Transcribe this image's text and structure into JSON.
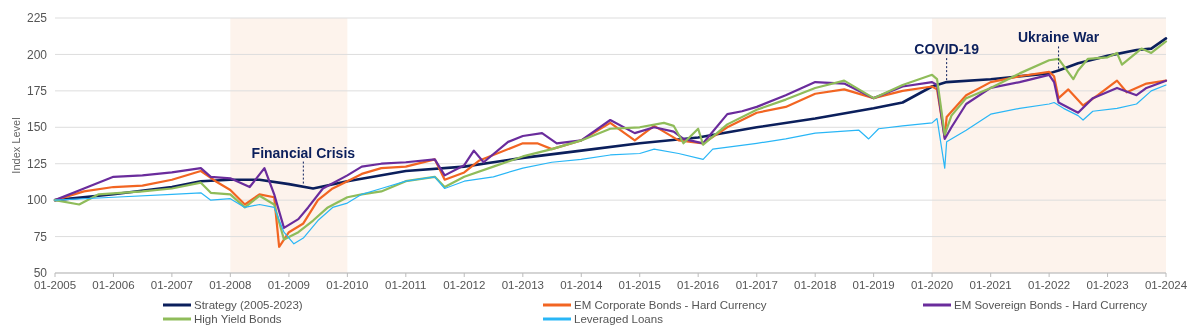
{
  "chart_data": {
    "type": "line",
    "ylabel": "Index Level",
    "xlim": [
      "2005-01",
      "2024-01"
    ],
    "ylim": [
      50,
      225
    ],
    "yticks": [
      50,
      75,
      100,
      125,
      150,
      175,
      200,
      225
    ],
    "xticks": [
      {
        "value": "2005-01",
        "label": "01-2005"
      },
      {
        "value": "2006-01",
        "label": "01-2006"
      },
      {
        "value": "2007-01",
        "label": "01-2007"
      },
      {
        "value": "2008-01",
        "label": "01-2008"
      },
      {
        "value": "2009-01",
        "label": "01-2009"
      },
      {
        "value": "2010-01",
        "label": "01-2010"
      },
      {
        "value": "2011-01",
        "label": "01-2011"
      },
      {
        "value": "2012-01",
        "label": "01-2012"
      },
      {
        "value": "2013-01",
        "label": "01-2013"
      },
      {
        "value": "2014-01",
        "label": "01-2014"
      },
      {
        "value": "2015-01",
        "label": "01-2015"
      },
      {
        "value": "2016-01",
        "label": "01-2016"
      },
      {
        "value": "2017-01",
        "label": "01-2017"
      },
      {
        "value": "2018-01",
        "label": "01-2018"
      },
      {
        "value": "2019-01",
        "label": "01-2019"
      },
      {
        "value": "2020-01",
        "label": "01-2020"
      },
      {
        "value": "2021-01",
        "label": "01-2021"
      },
      {
        "value": "2022-01",
        "label": "01-2022"
      },
      {
        "value": "2023-01",
        "label": "01-2023"
      },
      {
        "value": "2024-01",
        "label": "01-2024"
      }
    ],
    "grid": "y",
    "legend": "bottom",
    "line_style": "solid",
    "marker": "none",
    "bands": [
      {
        "axis": "x",
        "from": "2008-01",
        "to": "2010-01",
        "color": "#fdf3ec"
      },
      {
        "axis": "x",
        "from": "2020-01",
        "to": "2024-01",
        "color": "#fdf3ec"
      }
    ],
    "annotations": [
      {
        "text": "Financial Crisis",
        "x": "2009-04",
        "y": 110
      },
      {
        "text": "COVID-19",
        "x": "2020-04",
        "y": 181
      },
      {
        "text": "Ukraine War",
        "x": "2022-03",
        "y": 189
      }
    ],
    "series": [
      {
        "name": "Strategy (2005-2023)",
        "color": "#0b1f5c",
        "x": [
          "2005-01",
          "2006-01",
          "2007-01",
          "2007-07",
          "2008-01",
          "2008-07",
          "2009-01",
          "2009-06",
          "2010-01",
          "2011-01",
          "2012-01",
          "2013-01",
          "2014-01",
          "2015-01",
          "2016-01",
          "2017-01",
          "2018-01",
          "2019-01",
          "2019-07",
          "2020-01",
          "2020-04",
          "2021-01",
          "2022-01",
          "2022-03",
          "2022-07",
          "2023-01",
          "2023-07",
          "2023-10",
          "2024-01"
        ],
        "values": [
          100,
          104,
          109,
          113,
          114,
          114,
          111,
          108,
          113,
          120,
          123,
          129,
          134,
          139,
          143,
          150,
          156,
          163,
          167,
          178,
          181,
          183,
          187,
          189,
          194,
          199,
          203,
          204,
          211
        ]
      },
      {
        "name": "EM Corporate Bonds - Hard Currency",
        "color": "#f26522",
        "x": [
          "2005-01",
          "2005-07",
          "2006-01",
          "2006-07",
          "2007-01",
          "2007-07",
          "2007-10",
          "2008-01",
          "2008-04",
          "2008-07",
          "2008-10",
          "2008-11",
          "2009-01",
          "2009-04",
          "2009-07",
          "2009-10",
          "2010-01",
          "2010-04",
          "2010-08",
          "2011-01",
          "2011-07",
          "2011-09",
          "2012-01",
          "2012-04",
          "2013-01",
          "2013-04",
          "2013-07",
          "2014-01",
          "2014-07",
          "2014-12",
          "2015-04",
          "2015-09",
          "2016-02",
          "2016-07",
          "2017-01",
          "2017-07",
          "2018-01",
          "2018-07",
          "2019-01",
          "2019-07",
          "2020-01",
          "2020-02",
          "2020-03-20",
          "2020-04",
          "2020-08",
          "2021-01",
          "2021-07",
          "2022-01",
          "2022-02",
          "2022-03",
          "2022-05",
          "2022-08",
          "2022-11",
          "2023-03",
          "2023-05",
          "2023-09",
          "2024-01"
        ],
        "values": [
          100,
          106,
          109,
          110,
          114,
          120,
          113,
          107,
          97,
          104,
          102,
          68,
          78,
          84,
          100,
          108,
          113,
          118,
          122,
          123,
          128,
          114,
          119,
          127,
          139,
          139,
          135,
          141,
          153,
          141,
          151,
          141,
          139,
          150,
          160,
          164,
          173,
          176,
          170,
          175,
          178,
          176,
          143,
          157,
          172,
          181,
          185,
          188,
          185,
          170,
          176,
          165,
          172,
          182,
          174,
          180,
          182
        ]
      },
      {
        "name": "EM Sovereign Bonds - Hard Currency",
        "color": "#6a2c9c",
        "x": [
          "2005-01",
          "2005-07",
          "2006-01",
          "2006-07",
          "2007-01",
          "2007-07",
          "2007-09",
          "2008-01",
          "2008-05",
          "2008-08",
          "2008-10",
          "2008-12",
          "2009-03",
          "2009-05",
          "2009-08",
          "2010-01",
          "2010-04",
          "2010-08",
          "2011-01",
          "2011-07",
          "2011-09",
          "2012-01",
          "2012-03",
          "2012-05",
          "2012-10",
          "2013-01",
          "2013-05",
          "2013-08",
          "2014-01",
          "2014-07",
          "2014-12",
          "2015-04",
          "2015-08",
          "2015-10",
          "2016-02",
          "2016-07",
          "2016-10",
          "2017-01",
          "2017-07",
          "2018-01",
          "2018-07",
          "2019-01",
          "2019-07",
          "2020-01",
          "2020-02",
          "2020-03-20",
          "2020-05",
          "2020-08",
          "2021-01",
          "2021-07",
          "2022-01",
          "2022-02",
          "2022-03",
          "2022-07",
          "2022-10",
          "2023-03",
          "2023-07",
          "2023-09",
          "2024-01"
        ],
        "values": [
          100,
          108,
          116,
          117,
          119,
          122,
          116,
          115,
          109,
          122,
          104,
          81,
          87,
          95,
          108,
          117,
          123,
          125,
          126,
          128,
          117,
          124,
          134,
          126,
          140,
          144,
          146,
          139,
          141,
          155,
          146,
          150,
          147,
          142,
          139,
          159,
          161,
          164,
          172,
          181,
          180,
          170,
          178,
          181,
          179,
          142,
          150,
          166,
          177,
          181,
          186,
          181,
          167,
          160,
          170,
          177,
          172,
          177,
          182
        ]
      },
      {
        "name": "High Yield Bonds",
        "color": "#8fbc5a",
        "x": [
          "2005-01",
          "2005-06",
          "2005-10",
          "2006-07",
          "2007-01",
          "2007-07",
          "2007-09",
          "2008-01",
          "2008-04",
          "2008-07",
          "2008-10",
          "2008-12",
          "2009-03",
          "2009-06",
          "2009-09",
          "2010-01",
          "2010-04",
          "2010-08",
          "2011-01",
          "2011-07",
          "2011-09",
          "2012-01",
          "2012-07",
          "2013-01",
          "2013-07",
          "2014-01",
          "2014-07",
          "2015-01",
          "2015-06",
          "2015-08",
          "2015-10",
          "2016-01",
          "2016-02",
          "2016-07",
          "2017-01",
          "2017-07",
          "2018-01",
          "2018-07",
          "2019-01",
          "2019-07",
          "2020-01",
          "2020-02",
          "2020-03-20",
          "2020-05",
          "2020-08",
          "2021-01",
          "2021-07",
          "2022-01",
          "2022-03",
          "2022-06",
          "2022-07",
          "2022-09",
          "2023-01",
          "2023-03",
          "2023-04",
          "2023-08",
          "2023-10",
          "2024-01"
        ],
        "values": [
          100,
          97,
          104,
          106,
          108,
          112,
          105,
          104,
          95,
          103,
          97,
          73,
          78,
          86,
          95,
          102,
          104,
          106,
          113,
          116,
          109,
          116,
          123,
          130,
          135,
          141,
          149,
          150,
          153,
          151,
          139,
          149,
          138,
          152,
          162,
          169,
          177,
          182,
          170,
          179,
          186,
          183,
          145,
          158,
          170,
          177,
          187,
          196,
          197,
          183,
          189,
          197,
          198,
          201,
          193,
          204,
          201,
          209
        ]
      },
      {
        "name": "Leveraged Loans",
        "color": "#29b6f6",
        "x": [
          "2005-01",
          "2006-01",
          "2007-01",
          "2007-07",
          "2007-09",
          "2008-01",
          "2008-04",
          "2008-07",
          "2008-10",
          "2008-12",
          "2009-02",
          "2009-04",
          "2009-07",
          "2009-10",
          "2010-01",
          "2010-04",
          "2010-08",
          "2011-01",
          "2011-07",
          "2011-09",
          "2012-01",
          "2012-07",
          "2013-01",
          "2013-07",
          "2014-01",
          "2014-07",
          "2015-01",
          "2015-04",
          "2015-09",
          "2016-02",
          "2016-04",
          "2017-01",
          "2017-07",
          "2018-01",
          "2018-10",
          "2018-12",
          "2019-02",
          "2019-07",
          "2020-01",
          "2020-02",
          "2020-03-20",
          "2020-04",
          "2020-08",
          "2021-01",
          "2021-07",
          "2022-01",
          "2022-02",
          "2022-04",
          "2022-07",
          "2022-08",
          "2022-10",
          "2023-03",
          "2023-07",
          "2023-10",
          "2024-01"
        ],
        "values": [
          100,
          102,
          104,
          105,
          100,
          101,
          95,
          97,
          95,
          78,
          70,
          74,
          86,
          95,
          98,
          104,
          108,
          113,
          116,
          108,
          113,
          116,
          122,
          126,
          128,
          131,
          132,
          135,
          132,
          128,
          135,
          139,
          142,
          146,
          148,
          142,
          149,
          151,
          153,
          156,
          122,
          140,
          148,
          159,
          163,
          166,
          167,
          163,
          158,
          155,
          161,
          163,
          166,
          175,
          179
        ]
      }
    ]
  }
}
